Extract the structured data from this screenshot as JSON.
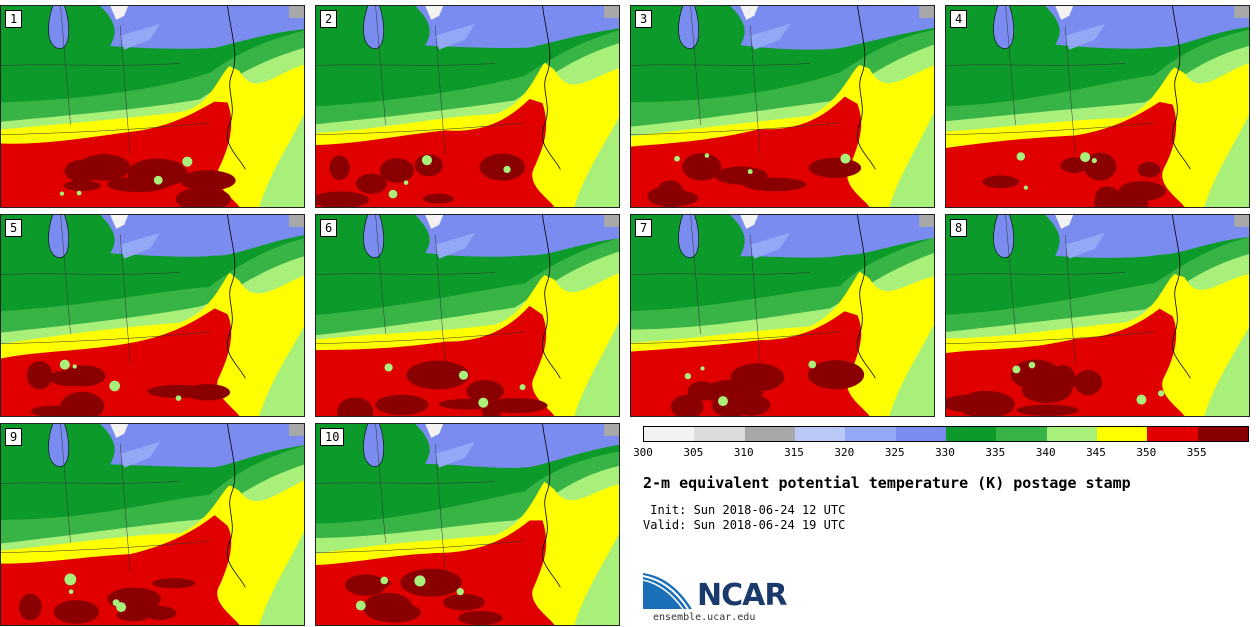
{
  "palette": {
    "c300": "#f2f2f2",
    "c305": "#dcdcdc",
    "c310": "#a8a8a8",
    "c315": "#b9c8f7",
    "c320": "#94a9f5",
    "c325": "#7a8cf0",
    "c330": "#0c9a2a",
    "c335": "#38b447",
    "c340": "#a9f07a",
    "c345": "#ffff00",
    "c350": "#e00000",
    "c355": "#8a0000"
  },
  "panels": [
    {
      "label": "1"
    },
    {
      "label": "2"
    },
    {
      "label": "3"
    },
    {
      "label": "4"
    },
    {
      "label": "5"
    },
    {
      "label": "6"
    },
    {
      "label": "7"
    },
    {
      "label": "8"
    },
    {
      "label": "9"
    },
    {
      "label": "10"
    }
  ],
  "colorbar": {
    "colors": [
      "#f2f2f2",
      "#dcdcdc",
      "#a8a8a8",
      "#b9c8f7",
      "#94a9f5",
      "#7a8cf0",
      "#0c9a2a",
      "#38b447",
      "#a9f07a",
      "#ffff00",
      "#e00000",
      "#8a0000"
    ],
    "ticks": [
      "300",
      "305",
      "310",
      "315",
      "320",
      "325",
      "330",
      "335",
      "340",
      "345",
      "350",
      "355"
    ]
  },
  "title": "2-m equivalent potential temperature (K) postage stamp",
  "init_line": " Init: Sun 2018-06-24 12 UTC",
  "valid_line": "Valid: Sun 2018-06-24 19 UTC",
  "logo": {
    "text": "NCAR",
    "url": "ensemble.ucar.edu"
  }
}
